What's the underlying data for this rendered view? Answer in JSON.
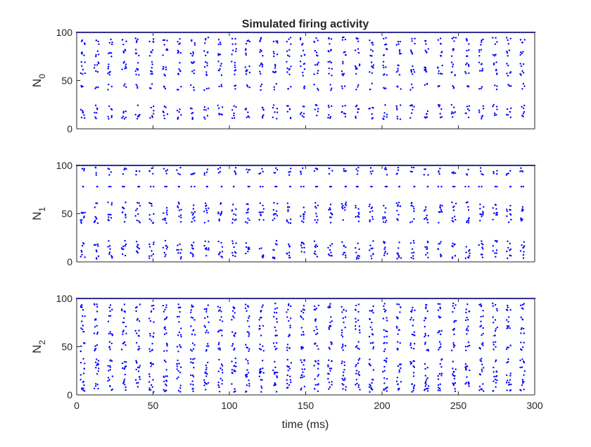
{
  "chart_data": {
    "type": "scatter",
    "title": "Simulated firing activity",
    "xlabel": "time (ms)",
    "xlim": [
      0,
      300
    ],
    "x_ticks": [
      0,
      50,
      100,
      150,
      200,
      250,
      300
    ],
    "x_tick_labels": [
      "0",
      "50",
      "100",
      "150",
      "200",
      "250",
      "300"
    ],
    "marker_color": "#0000ff",
    "grid": false,
    "panels": [
      {
        "ylabel_base": "N",
        "ylabel_sub": "0",
        "ylim": [
          0,
          100
        ],
        "y_ticks": [
          0,
          50,
          100
        ],
        "y_tick_labels": [
          "0",
          "50",
          "100"
        ],
        "burst_times_ms": [
          4,
          13,
          22,
          31,
          40,
          49,
          58,
          67,
          76,
          85,
          94,
          103,
          112,
          121,
          130,
          139,
          148,
          157,
          166,
          175,
          184,
          193,
          202,
          211,
          220,
          229,
          238,
          247,
          256,
          265,
          274,
          283,
          292
        ],
        "active_neuron_bands": [
          [
            10,
            25
          ],
          [
            40,
            47
          ],
          [
            55,
            70
          ],
          [
            75,
            83
          ],
          [
            87,
            95
          ]
        ],
        "always_firing_neuron": 100
      },
      {
        "ylabel_base": "N",
        "ylabel_sub": "1",
        "ylim": [
          0,
          100
        ],
        "y_ticks": [
          0,
          50,
          100
        ],
        "y_tick_labels": [
          "0",
          "50",
          "100"
        ],
        "burst_times_ms": [
          4,
          13,
          22,
          31,
          40,
          49,
          58,
          67,
          76,
          85,
          94,
          103,
          112,
          121,
          130,
          139,
          148,
          157,
          166,
          175,
          184,
          193,
          202,
          211,
          220,
          229,
          238,
          247,
          256,
          265,
          274,
          283,
          292
        ],
        "active_neuron_bands": [
          [
            3,
            22
          ],
          [
            40,
            62
          ],
          [
            78,
            78
          ],
          [
            90,
            98
          ]
        ],
        "always_firing_neuron": 100
      },
      {
        "ylabel_base": "N",
        "ylabel_sub": "2",
        "ylim": [
          0,
          100
        ],
        "y_ticks": [
          0,
          50,
          100
        ],
        "y_tick_labels": [
          "0",
          "50",
          "100"
        ],
        "burst_times_ms": [
          4,
          13,
          22,
          31,
          40,
          49,
          58,
          67,
          76,
          85,
          94,
          103,
          112,
          121,
          130,
          139,
          148,
          157,
          166,
          175,
          184,
          193,
          202,
          211,
          220,
          229,
          238,
          247,
          256,
          265,
          274,
          283,
          292
        ],
        "active_neuron_bands": [
          [
            3,
            38
          ],
          [
            45,
            55
          ],
          [
            60,
            72
          ],
          [
            75,
            82
          ],
          [
            85,
            95
          ]
        ],
        "always_firing_neuron": 100
      }
    ]
  }
}
